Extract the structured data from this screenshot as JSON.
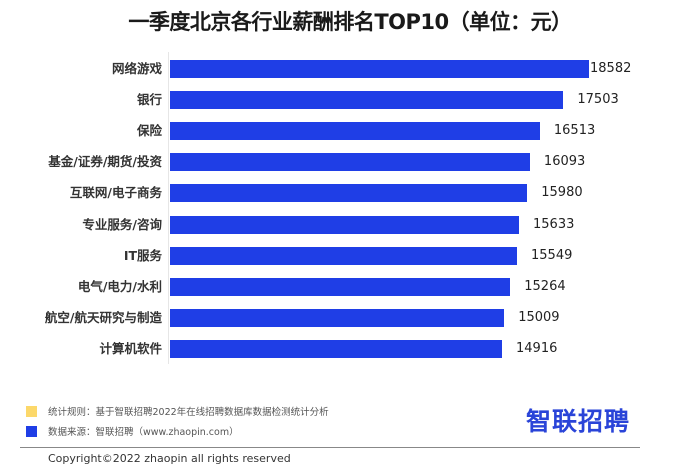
{
  "title": "一季度北京各行业薪酬排名TOP10（单位：元）",
  "colors": {
    "bar": "#1f3ee6",
    "legend_yellow": "#fcd86a",
    "legend_blue": "#1f3ee6",
    "logo_blue": "#2a44d8",
    "logo_dot": "#f5c518"
  },
  "chart_data": {
    "type": "bar",
    "orientation": "horizontal",
    "title": "一季度北京各行业薪酬排名TOP10（单位：元）",
    "xlabel": "",
    "ylabel": "",
    "unit": "元",
    "grid": false,
    "legend_position": "none",
    "categories": [
      "网络游戏",
      "银行",
      "保险",
      "基金/证券/期货/投资",
      "互联网/电子商务",
      "专业服务/咨询",
      "IT服务",
      "电气/电力/水利",
      "航空/航天研究与制造",
      "计算机软件"
    ],
    "values": [
      18582,
      17503,
      16513,
      16093,
      15980,
      15633,
      15549,
      15264,
      15009,
      14916
    ],
    "series": [
      {
        "name": "薪酬",
        "values": [
          18582,
          17503,
          16513,
          16093,
          15980,
          15633,
          15549,
          15264,
          15009,
          14916
        ]
      }
    ]
  },
  "rows": [
    {
      "label": "网络游戏",
      "value": "18582"
    },
    {
      "label": "银行",
      "value": "17503"
    },
    {
      "label": "保险",
      "value": "16513"
    },
    {
      "label": "基金/证券/期货/投资",
      "value": "16093"
    },
    {
      "label": "互联网/电子商务",
      "value": "15980"
    },
    {
      "label": "专业服务/咨询",
      "value": "15633"
    },
    {
      "label": "IT服务",
      "value": "15549"
    },
    {
      "label": "电气/电力/水利",
      "value": "15264"
    },
    {
      "label": "航空/航天研究与制造",
      "value": "15009"
    },
    {
      "label": "计算机软件",
      "value": "14916"
    }
  ],
  "footer": {
    "notes": [
      {
        "text": "统计规则：基于智联招聘2022年在线招聘数据库数据检测统计分析",
        "swatch": "yellow"
      },
      {
        "text": "数据来源：智联招聘（www.zhaopin.com）",
        "swatch": "blue"
      }
    ],
    "logo": "智联招聘",
    "copyright": "Copyright©2022 zhaopin all rights reserved"
  }
}
